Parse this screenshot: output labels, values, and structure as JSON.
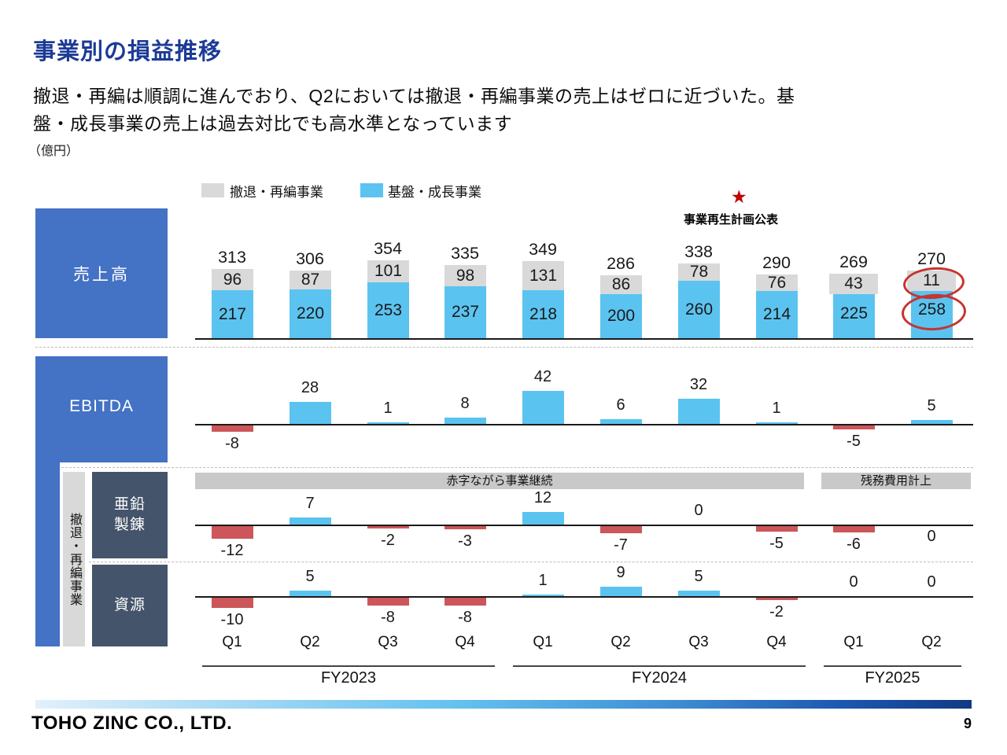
{
  "title": "事業別の損益推移",
  "subtitle_line1": "撤退・再編は順調に進んでおり、Q2においては撤退・再編事業の売上はゼロに近づいた。基",
  "subtitle_line2": "盤・成長事業の売上は過去対比でも高水準となっています",
  "unit_label": "（億円）",
  "legend": [
    {
      "label": "撤退・再編事業",
      "color": "#D9D9D9"
    },
    {
      "label": "基盤・成長事業",
      "color": "#5BC3F0"
    }
  ],
  "annotation": {
    "star_icon": "★",
    "star_color": "#C00000",
    "label": "事業再生計画公表"
  },
  "row_headers": {
    "sales": "売上高",
    "ebitda": "EBITDA",
    "withdrawal_group_vertical": "撤退・再編事業",
    "zinc_line1": "亜鉛",
    "zinc_line2": "製錬",
    "resources": "資源"
  },
  "banners": [
    {
      "label": "赤字ながら事業継続"
    },
    {
      "label": "残務費用計上"
    }
  ],
  "x_axis": {
    "quarters": [
      "Q1",
      "Q2",
      "Q3",
      "Q4",
      "Q1",
      "Q2",
      "Q3",
      "Q4",
      "Q1",
      "Q2"
    ],
    "groups": [
      {
        "label": "FY2023",
        "first_col": 0,
        "last_col": 3
      },
      {
        "label": "FY2024",
        "first_col": 4,
        "last_col": 7
      },
      {
        "label": "FY2025",
        "first_col": 8,
        "last_col": 9
      }
    ]
  },
  "chart_data": [
    {
      "id": "sales",
      "type": "bar",
      "stacked": true,
      "title": "売上高",
      "categories": [
        "FY2023 Q1",
        "FY2023 Q2",
        "FY2023 Q3",
        "FY2023 Q4",
        "FY2024 Q1",
        "FY2024 Q2",
        "FY2024 Q3",
        "FY2024 Q4",
        "FY2025 Q1",
        "FY2025 Q2"
      ],
      "series": [
        {
          "name": "撤退・再編事業",
          "color": "#D9D9D9",
          "values": [
            96,
            87,
            101,
            98,
            131,
            86,
            78,
            76,
            43,
            11
          ]
        },
        {
          "name": "基盤・成長事業",
          "color": "#5BC3F0",
          "values": [
            217,
            220,
            253,
            237,
            218,
            200,
            260,
            214,
            225,
            258
          ]
        }
      ],
      "totals": [
        313,
        306,
        354,
        335,
        349,
        286,
        338,
        290,
        269,
        270
      ],
      "highlights": [
        {
          "col": 9,
          "segment": "撤退・再編事業",
          "value": 11,
          "style": "red-circle"
        },
        {
          "col": 9,
          "segment": "基盤・成長事業",
          "value": 258,
          "style": "red-circle"
        }
      ]
    },
    {
      "id": "ebitda",
      "type": "bar",
      "title": "EBITDA",
      "values": [
        -8,
        28,
        1,
        8,
        42,
        6,
        32,
        1,
        -5,
        5
      ],
      "label_sides": [
        "below",
        "above",
        "above",
        "above",
        "above",
        "above",
        "above",
        "above",
        "below",
        "above"
      ]
    },
    {
      "id": "zinc",
      "type": "bar",
      "title": "亜鉛製錬",
      "values": [
        -12,
        7,
        -2,
        -3,
        12,
        -7,
        0,
        -5,
        -6,
        0
      ],
      "label_sides": [
        "below",
        "above",
        "below",
        "below",
        "above",
        "below",
        "above",
        "below",
        "below",
        "below"
      ]
    },
    {
      "id": "resources",
      "type": "bar",
      "title": "資源",
      "values": [
        -10,
        5,
        -8,
        -8,
        1,
        9,
        5,
        -2,
        0,
        0
      ],
      "label_sides": [
        "below",
        "above",
        "below",
        "below",
        "above",
        "above",
        "above",
        "below",
        "above",
        "above"
      ]
    }
  ],
  "colors": {
    "positive_bar": "#5BC3F0",
    "negative_bar": "#CC5659",
    "withdrawal_gray": "#D9D9D9",
    "header_blue": "#4472C4",
    "dark_box": "#44546A",
    "banner_gray": "#C9C9C9",
    "circle_red": "#C5342F",
    "star_red": "#C00000",
    "title_blue": "#1C3B96"
  },
  "footer": {
    "company": "TOHO  ZINC  CO.,  LTD.",
    "page": "9"
  }
}
